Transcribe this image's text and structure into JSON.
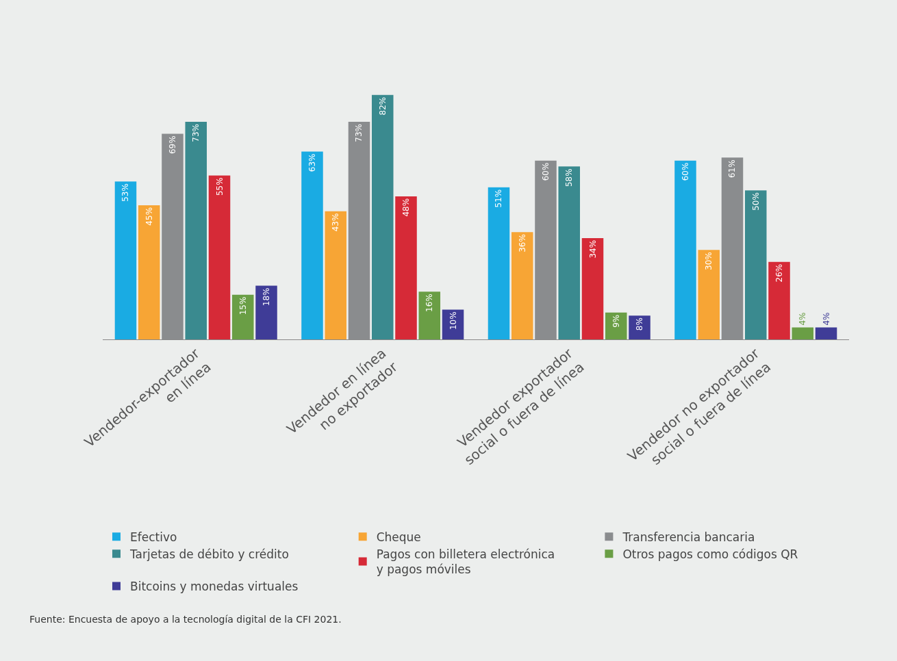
{
  "chart_data": {
    "type": "bar",
    "categories": [
      "Vendedor-exportador\nen línea",
      "Vendedor en línea\nno exportador",
      "Vendedor exportador\nsocial o fuera de línea",
      "Vendedor no exportador\nsocial o fuera de línea"
    ],
    "series": [
      {
        "name": "Efectivo",
        "color": "#1aabe3",
        "values": [
          53,
          63,
          51,
          60
        ],
        "value_labels": [
          "53%",
          "63%",
          "51%",
          "60%"
        ]
      },
      {
        "name": "Cheque",
        "color": "#f7a535",
        "values": [
          45,
          43,
          36,
          30
        ],
        "value_labels": [
          "45%",
          "43%",
          "36%",
          "30%"
        ]
      },
      {
        "name": "Transferencia bancaria",
        "color": "#8a8c8e",
        "values": [
          69,
          73,
          60,
          61
        ],
        "value_labels": [
          "69%",
          "73%",
          "60%",
          "61%"
        ]
      },
      {
        "name": "Tarjetas de débito y crédito",
        "color": "#3a8a8f",
        "values": [
          73,
          82,
          58,
          50
        ],
        "value_labels": [
          "73%",
          "82%",
          "58%",
          "50%"
        ]
      },
      {
        "name": "Pagos con billetera electrónica\ny pagos móviles",
        "color": "#d62a37",
        "values": [
          55,
          48,
          34,
          26
        ],
        "value_labels": [
          "55%",
          "48%",
          "34%",
          "26%"
        ]
      },
      {
        "name": "Otros pagos como códigos QR",
        "color": "#6a9e45",
        "values": [
          15,
          16,
          9,
          4
        ],
        "value_labels": [
          "15%",
          "16%",
          "9%",
          "4%"
        ]
      },
      {
        "name": "Bitcoins y monedas virtuales",
        "color": "#3f3c97",
        "values": [
          18,
          10,
          8,
          4
        ],
        "value_labels": [
          "18%",
          "10%",
          "8%",
          "4%"
        ]
      }
    ],
    "legend": "bottom",
    "grid": false,
    "annotations": [
      "Fuente: Encuesta de apoyo a la tecnología digital de la CFI 2021."
    ]
  }
}
